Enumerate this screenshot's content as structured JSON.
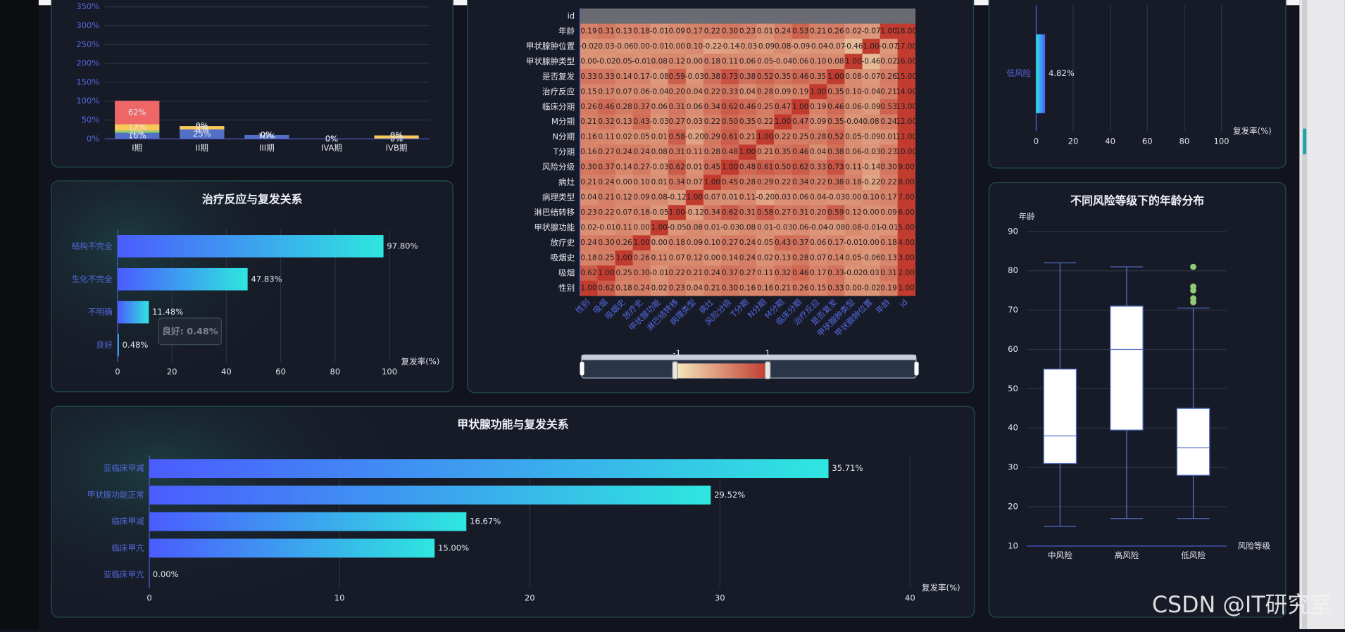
{
  "watermark": "CSDN @IT研究室",
  "chart_data": [
    {
      "type": "bar",
      "stacked": true,
      "categories": [
        "I期",
        "II期",
        "III期",
        "IVA期",
        "IVB期"
      ],
      "series": [
        {
          "color": "#5470c6",
          "values": [
            16,
            25,
            10,
            0,
            0
          ],
          "value_labels": [
            "16%",
            "25%",
            "10%",
            "0%",
            "0%"
          ]
        },
        {
          "color": "#91cc75",
          "values": [
            6,
            0,
            0,
            0,
            0
          ],
          "value_labels": [
            "6%",
            "0%",
            "0%",
            "0%",
            "0%"
          ]
        },
        {
          "color": "#fac858",
          "values": [
            17,
            9,
            0,
            0,
            9
          ],
          "value_labels": [
            "17%",
            "9%",
            "0%",
            "0%",
            "9%"
          ]
        },
        {
          "color": "#ee6666",
          "values": [
            62,
            0,
            0,
            0,
            0
          ],
          "value_labels": [
            "62%",
            "0%",
            "0%",
            "0%",
            "0%"
          ]
        }
      ],
      "ylim": [
        0,
        350
      ],
      "yticks": [
        {
          "value": 0,
          "label": "0%"
        },
        {
          "value": 50,
          "label": "50%"
        },
        {
          "value": 100,
          "label": "100%"
        },
        {
          "value": 150,
          "label": "150%"
        },
        {
          "value": 200,
          "label": "200%"
        },
        {
          "value": 250,
          "label": "250%"
        },
        {
          "value": 300,
          "label": "300%"
        },
        {
          "value": 350,
          "label": "350%"
        }
      ],
      "grid": true
    },
    {
      "type": "bar",
      "orientation": "horizontal",
      "title": "治疗反应与复发关系",
      "categories": [
        "良好",
        "不明确",
        "生化不完全",
        "结构不完全"
      ],
      "values": [
        0.48,
        11.48,
        47.83,
        97.8
      ],
      "value_labels": [
        "0.48%",
        "11.48%",
        "47.83%",
        "97.80%"
      ],
      "xlim": [
        0,
        100
      ],
      "xticks": [
        0,
        20,
        40,
        60,
        80,
        100
      ],
      "x_label": "复发率(%)",
      "gradient": [
        "#4b5cff",
        "#2ee6df"
      ],
      "grid": true,
      "tooltip": "良好: 0.48%"
    },
    {
      "type": "heatmap",
      "x": [
        "性别",
        "吸烟",
        "吸烟史",
        "放疗史",
        "甲状腺功能",
        "淋巴结转移",
        "病理类型",
        "病灶",
        "风险分级",
        "T分期",
        "N分期",
        "M分期",
        "临床分期",
        "治疗反应",
        "是否复发",
        "甲状腺肿类型",
        "甲状腺肿位置",
        "年龄",
        "id"
      ],
      "y": [
        "id",
        "年龄",
        "甲状腺肿位置",
        "甲状腺肿类型",
        "是否复发",
        "治疗反应",
        "临床分期",
        "M分期",
        "N分期",
        "T分期",
        "风险分级",
        "病灶",
        "病理类型",
        "淋巴结转移",
        "甲状腺功能",
        "放疗史",
        "吸烟史",
        "吸烟",
        "性别"
      ],
      "values": [
        [
          null,
          null,
          null,
          null,
          null,
          null,
          null,
          null,
          null,
          null,
          null,
          null,
          null,
          null,
          null,
          null,
          null,
          null,
          null
        ],
        [
          0.19,
          0.31,
          0.13,
          0.18,
          -0.01,
          0.09,
          0.17,
          0.22,
          0.3,
          0.23,
          0.01,
          0.24,
          0.53,
          0.21,
          0.26,
          0.02,
          -0.07,
          1.0,
          18.0
        ],
        [
          -0.02,
          0.03,
          -0.06,
          0.0,
          -0.01,
          0.0,
          0.1,
          -0.22,
          -0.14,
          -0.03,
          -0.09,
          0.08,
          -0.09,
          -0.04,
          -0.07,
          -0.46,
          1.0,
          -0.07,
          17.0
        ],
        [
          0.0,
          -0.02,
          0.05,
          -0.01,
          0.08,
          0.12,
          0.0,
          0.18,
          0.11,
          0.06,
          0.05,
          -0.04,
          0.06,
          0.1,
          0.08,
          1.0,
          -0.46,
          0.02,
          16.0
        ],
        [
          0.33,
          0.33,
          0.14,
          0.17,
          -0.08,
          0.59,
          -0.03,
          0.38,
          0.73,
          0.38,
          0.52,
          0.35,
          0.46,
          0.35,
          1.0,
          0.08,
          -0.07,
          0.26,
          15.0
        ],
        [
          0.15,
          0.17,
          0.07,
          0.06,
          -0.04,
          0.2,
          0.04,
          0.22,
          0.33,
          0.04,
          0.28,
          0.09,
          0.19,
          1.0,
          0.35,
          0.1,
          -0.04,
          0.21,
          14.0
        ],
        [
          0.26,
          0.46,
          0.28,
          0.37,
          0.06,
          0.31,
          0.06,
          0.34,
          0.62,
          0.46,
          0.25,
          0.47,
          1.0,
          0.19,
          0.46,
          0.06,
          -0.09,
          0.53,
          13.0
        ],
        [
          0.21,
          0.32,
          0.13,
          0.43,
          -0.03,
          0.27,
          0.03,
          0.22,
          0.5,
          0.35,
          0.22,
          1.0,
          0.47,
          0.09,
          0.35,
          -0.04,
          0.08,
          0.24,
          12.0
        ],
        [
          0.16,
          0.11,
          0.02,
          0.05,
          0.01,
          0.58,
          -0.2,
          0.29,
          0.61,
          0.21,
          1.0,
          0.22,
          0.25,
          0.28,
          0.52,
          0.05,
          -0.09,
          0.01,
          11.0
        ],
        [
          0.16,
          0.27,
          0.24,
          0.24,
          0.08,
          0.31,
          0.11,
          0.28,
          0.48,
          1.0,
          0.21,
          0.35,
          0.46,
          0.04,
          0.38,
          0.06,
          -0.03,
          0.23,
          10.0
        ],
        [
          0.3,
          0.37,
          0.14,
          0.27,
          -0.03,
          0.62,
          0.01,
          0.45,
          1.0,
          0.48,
          0.61,
          0.5,
          0.62,
          0.33,
          0.73,
          0.11,
          -0.14,
          0.3,
          9.0
        ],
        [
          0.21,
          0.24,
          0.0,
          0.1,
          0.01,
          0.34,
          0.07,
          1.0,
          0.45,
          0.28,
          0.29,
          0.22,
          0.34,
          0.22,
          0.38,
          0.18,
          -0.22,
          0.22,
          8.0
        ],
        [
          0.04,
          0.21,
          0.12,
          0.09,
          0.08,
          -0.12,
          1.0,
          0.07,
          0.01,
          0.11,
          -0.2,
          0.03,
          0.06,
          0.04,
          -0.03,
          0.0,
          0.1,
          0.17,
          7.0
        ],
        [
          0.23,
          0.22,
          0.07,
          0.18,
          -0.05,
          1.0,
          -0.12,
          0.34,
          0.62,
          0.31,
          0.58,
          0.27,
          0.31,
          0.2,
          0.59,
          0.12,
          0.0,
          0.09,
          6.0
        ],
        [
          0.02,
          -0.01,
          0.11,
          0.0,
          1.0,
          -0.05,
          0.08,
          0.01,
          -0.03,
          0.08,
          0.01,
          -0.03,
          0.06,
          -0.04,
          -0.08,
          0.08,
          -0.01,
          -0.01,
          5.0
        ],
        [
          0.24,
          0.3,
          0.26,
          1.0,
          0.0,
          0.18,
          0.09,
          0.1,
          0.27,
          0.24,
          0.05,
          0.43,
          0.37,
          0.06,
          0.17,
          -0.01,
          0.0,
          0.18,
          4.0
        ],
        [
          0.18,
          0.25,
          1.0,
          0.26,
          0.11,
          0.07,
          0.12,
          0.0,
          0.14,
          0.24,
          0.02,
          0.13,
          0.28,
          0.07,
          0.14,
          0.05,
          -0.06,
          0.13,
          3.0
        ],
        [
          0.62,
          1.0,
          0.25,
          0.3,
          -0.01,
          0.22,
          0.21,
          0.24,
          0.37,
          0.27,
          0.11,
          0.32,
          0.46,
          0.17,
          0.33,
          -0.02,
          0.03,
          0.31,
          2.0
        ],
        [
          1.0,
          0.62,
          0.18,
          0.24,
          0.02,
          0.23,
          0.04,
          0.21,
          0.3,
          0.16,
          0.16,
          0.21,
          0.26,
          0.15,
          0.33,
          0.0,
          -0.02,
          0.19,
          1.0
        ]
      ],
      "value_labels": [
        [
          null,
          null,
          null,
          null,
          null,
          null,
          null,
          null,
          null,
          null,
          null,
          null,
          null,
          null,
          null,
          null,
          null,
          null,
          null
        ],
        [
          "0.19",
          "0.31",
          "0.13",
          "0.18",
          "-0.01",
          "0.09",
          "0.17",
          "0.22",
          "0.30",
          "0.23",
          "0.01",
          "0.24",
          "0.53",
          "0.21",
          "0.26",
          "0.02",
          "-0.07",
          "1.00",
          "18.00"
        ],
        [
          "-0.02",
          "0.03",
          "-0.06",
          "0.00",
          "-0.01",
          "0.00",
          "0.10",
          "-0.22",
          "-0.14",
          "-0.03",
          "-0.09",
          "0.08",
          "-0.09",
          "-0.04",
          "-0.07",
          "-0.46",
          "1.00",
          "-0.07",
          "17.00"
        ],
        [
          "0.00",
          "-0.02",
          "0.05",
          "-0.01",
          "0.08",
          "0.12",
          "0.00",
          "0.18",
          "0.11",
          "0.06",
          "0.05",
          "-0.04",
          "0.06",
          "0.10",
          "0.08",
          "1.00",
          "-0.46",
          "0.02",
          "16.00"
        ],
        [
          "0.33",
          "0.33",
          "0.14",
          "0.17",
          "-0.08",
          "0.59",
          "-0.03",
          "0.38",
          "0.73",
          "0.38",
          "0.52",
          "0.35",
          "0.46",
          "0.35",
          "1.00",
          "0.08",
          "-0.07",
          "0.26",
          "15.00"
        ],
        [
          "0.15",
          "0.17",
          "0.07",
          "0.06",
          "-0.04",
          "0.20",
          "0.04",
          "0.22",
          "0.33",
          "0.04",
          "0.28",
          "0.09",
          "0.19",
          "1.00",
          "0.35",
          "0.10",
          "-0.04",
          "0.21",
          "14.00"
        ],
        [
          "0.26",
          "0.46",
          "0.28",
          "0.37",
          "0.06",
          "0.31",
          "0.06",
          "0.34",
          "0.62",
          "0.46",
          "0.25",
          "0.47",
          "1.00",
          "0.19",
          "0.46",
          "0.06",
          "-0.09",
          "0.53",
          "13.00"
        ],
        [
          "0.21",
          "0.32",
          "0.13",
          "0.43",
          "-0.03",
          "0.27",
          "0.03",
          "0.22",
          "0.50",
          "0.35",
          "0.22",
          "1.00",
          "0.47",
          "0.09",
          "0.35",
          "-0.04",
          "0.08",
          "0.24",
          "12.00"
        ],
        [
          "0.16",
          "0.11",
          "0.02",
          "0.05",
          "0.01",
          "0.58",
          "-0.20",
          "0.29",
          "0.61",
          "0.21",
          "1.00",
          "0.22",
          "0.25",
          "0.28",
          "0.52",
          "0.05",
          "-0.09",
          "0.01",
          "11.00"
        ],
        [
          "0.16",
          "0.27",
          "0.24",
          "0.24",
          "0.08",
          "0.31",
          "0.11",
          "0.28",
          "0.48",
          "1.00",
          "0.21",
          "0.35",
          "0.46",
          "0.04",
          "0.38",
          "0.06",
          "-0.03",
          "0.23",
          "10.00"
        ],
        [
          "0.30",
          "0.37",
          "0.14",
          "0.27",
          "-0.03",
          "0.62",
          "0.01",
          "0.45",
          "1.00",
          "0.48",
          "0.61",
          "0.50",
          "0.62",
          "0.33",
          "0.73",
          "0.11",
          "-0.14",
          "0.30",
          "9.00"
        ],
        [
          "0.21",
          "0.24",
          "0.00",
          "0.10",
          "0.01",
          "0.34",
          "0.07",
          "1.00",
          "0.45",
          "0.28",
          "0.29",
          "0.22",
          "0.34",
          "0.22",
          "0.38",
          "0.18",
          "-0.22",
          "0.22",
          "8.00"
        ],
        [
          "0.04",
          "0.21",
          "0.12",
          "0.09",
          "0.08",
          "-0.12",
          "1.00",
          "0.07",
          "0.01",
          "0.11",
          "-0.20",
          "0.03",
          "0.06",
          "0.04",
          "-0.03",
          "0.00",
          "0.10",
          "0.17",
          "7.00"
        ],
        [
          "0.23",
          "0.22",
          "0.07",
          "0.18",
          "-0.05",
          "1.00",
          "-0.12",
          "0.34",
          "0.62",
          "0.31",
          "0.58",
          "0.27",
          "0.31",
          "0.20",
          "0.59",
          "0.12",
          "0.00",
          "0.09",
          "6.00"
        ],
        [
          "0.02",
          "-0.01",
          "0.11",
          "0.00",
          "1.00",
          "-0.05",
          "0.08",
          "0.01",
          "-0.03",
          "0.08",
          "0.01",
          "-0.03",
          "0.06",
          "-0.04",
          "-0.08",
          "0.08",
          "-0.01",
          "-0.01",
          "5.00"
        ],
        [
          "0.24",
          "0.30",
          "0.26",
          "1.00",
          "0.00",
          "0.18",
          "0.09",
          "0.10",
          "0.27",
          "0.24",
          "0.05",
          "0.43",
          "0.37",
          "0.06",
          "0.17",
          "-0.01",
          "0.00",
          "0.18",
          "4.00"
        ],
        [
          "0.18",
          "0.25",
          "1.00",
          "0.26",
          "0.11",
          "0.07",
          "0.12",
          "0.00",
          "0.14",
          "0.24",
          "0.02",
          "0.13",
          "0.28",
          "0.07",
          "0.14",
          "0.05",
          "-0.06",
          "0.13",
          "3.00"
        ],
        [
          "0.62",
          "1.00",
          "0.25",
          "0.30",
          "-0.01",
          "0.22",
          "0.21",
          "0.24",
          "0.37",
          "0.27",
          "0.11",
          "0.32",
          "0.46",
          "0.17",
          "0.33",
          "-0.02",
          "0.03",
          "0.31",
          "2.00"
        ],
        [
          "1.00",
          "0.62",
          "0.18",
          "0.24",
          "0.02",
          "0.23",
          "0.04",
          "0.21",
          "0.30",
          "0.16",
          "0.16",
          "0.21",
          "0.26",
          "0.15",
          "0.33",
          "0.00",
          "-0.02",
          "0.19",
          "1.00"
        ]
      ],
      "visual_map": {
        "range": [
          -1,
          1
        ],
        "colors": [
          "#f5e9bd",
          "#c23b2f"
        ]
      },
      "null_color": "#6a6b73"
    },
    {
      "type": "bar",
      "orientation": "horizontal",
      "categories": [
        "低风险"
      ],
      "values": [
        4.82
      ],
      "value_labels": [
        "4.82%"
      ],
      "xlim": [
        0,
        100
      ],
      "xticks": [
        0,
        20,
        40,
        60,
        80,
        100
      ],
      "x_label": "复发率(%)",
      "gradient": [
        "#2ee6df",
        "#4b5cff"
      ],
      "grid": true
    },
    {
      "type": "bar",
      "orientation": "horizontal",
      "title": "甲状腺功能与复发关系",
      "categories": [
        "亚临床甲亢",
        "临床甲亢",
        "临床甲减",
        "甲状腺功能正常",
        "亚临床甲减"
      ],
      "values": [
        0.0,
        15.0,
        16.67,
        29.52,
        35.71
      ],
      "value_labels": [
        "0.00%",
        "15.00%",
        "16.67%",
        "29.52%",
        "35.71%"
      ],
      "xlim": [
        0,
        40
      ],
      "xticks": [
        0,
        10,
        20,
        30,
        40
      ],
      "x_label": "复发率(%)",
      "gradient": [
        "#4b5cff",
        "#2ee6df"
      ],
      "grid": true
    },
    {
      "type": "boxplot",
      "title": "不同风险等级下的年龄分布",
      "y_label": "年龄",
      "x_label": "风险等级",
      "categories": [
        "中风险",
        "高风险",
        "低风险"
      ],
      "boxes": [
        {
          "min": 15,
          "q1": 31,
          "median": 38,
          "q3": 55,
          "max": 82
        },
        {
          "min": 17,
          "q1": 39.5,
          "median": 60,
          "q3": 71,
          "max": 81
        },
        {
          "min": 17,
          "q1": 28,
          "median": 35,
          "q3": 45,
          "max": 70.5
        }
      ],
      "outliers": [
        [],
        [],
        [
          81,
          76,
          75,
          73,
          72
        ]
      ],
      "ylim": [
        10,
        90
      ],
      "yticks": [
        10,
        20,
        30,
        40,
        50,
        60,
        70,
        80,
        90
      ],
      "grid": true,
      "box_color": "#ffffff",
      "line_color": "#5470c6",
      "outlier_color": "#91cc75"
    }
  ]
}
